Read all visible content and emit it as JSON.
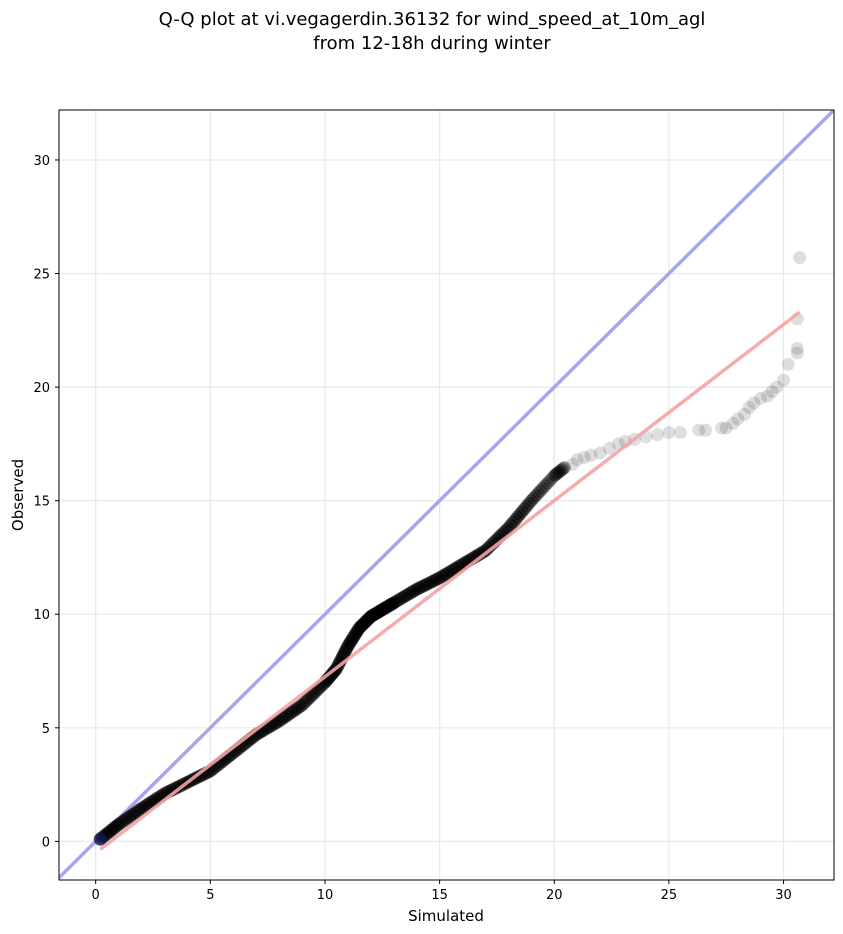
{
  "chart_data": {
    "type": "scatter",
    "title_lines": [
      "Q-Q plot at vi.vegagerdin.36132 for wind_speed_at_10m_agl",
      "from 12-18h during winter"
    ],
    "xlabel": "Simulated",
    "ylabel": "Observed",
    "xlim": [
      -1.6,
      32.2
    ],
    "ylim": [
      -1.7,
      32.2
    ],
    "xticks": [
      0,
      5,
      10,
      15,
      20,
      25,
      30
    ],
    "yticks": [
      0,
      5,
      10,
      15,
      20,
      25,
      30
    ],
    "grid": true,
    "colors": {
      "points": "#000000",
      "identity_line": "#a6a6f0",
      "fit_line": "#f4a3a3",
      "grid": "#e8e8e8"
    },
    "identity_line": {
      "x": [
        -1.6,
        32.2
      ],
      "y": [
        -1.6,
        32.2
      ]
    },
    "fit_line": {
      "x": [
        0.2,
        30.7
      ],
      "y": [
        -0.35,
        23.3
      ]
    },
    "quantile_curve": {
      "x": [
        0.2,
        1.0,
        2.0,
        3.0,
        4.0,
        5.0,
        6.0,
        7.0,
        8.0,
        9.0,
        10.0,
        10.5,
        11.0,
        11.5,
        12.0,
        12.5,
        13.0,
        14.0,
        15.0,
        16.0,
        17.0,
        18.0,
        19.0,
        20.0,
        20.5
      ],
      "y": [
        0.1,
        0.75,
        1.45,
        2.1,
        2.6,
        3.1,
        3.9,
        4.7,
        5.3,
        6.0,
        7.0,
        7.6,
        8.6,
        9.4,
        9.9,
        10.2,
        10.5,
        11.1,
        11.6,
        12.2,
        12.8,
        13.8,
        15.0,
        16.1,
        16.5
      ]
    },
    "tail_points": {
      "x": [
        20.8,
        21.0,
        21.3,
        21.6,
        22.0,
        22.4,
        22.8,
        23.1,
        23.5,
        24.0,
        24.5,
        25.0,
        25.5,
        26.3,
        26.6,
        27.3,
        27.5,
        27.8,
        28.0,
        28.3,
        28.5,
        28.7,
        29.0,
        29.3,
        29.5,
        29.7,
        30.0,
        30.2,
        30.6,
        30.6,
        30.6,
        30.7
      ],
      "y": [
        16.6,
        16.8,
        16.9,
        17.0,
        17.1,
        17.3,
        17.5,
        17.6,
        17.7,
        17.8,
        17.9,
        18.0,
        18.0,
        18.1,
        18.1,
        18.2,
        18.2,
        18.4,
        18.6,
        18.8,
        19.1,
        19.3,
        19.5,
        19.6,
        19.8,
        20.0,
        20.3,
        21.0,
        21.5,
        21.7,
        23.0,
        25.7
      ]
    }
  }
}
